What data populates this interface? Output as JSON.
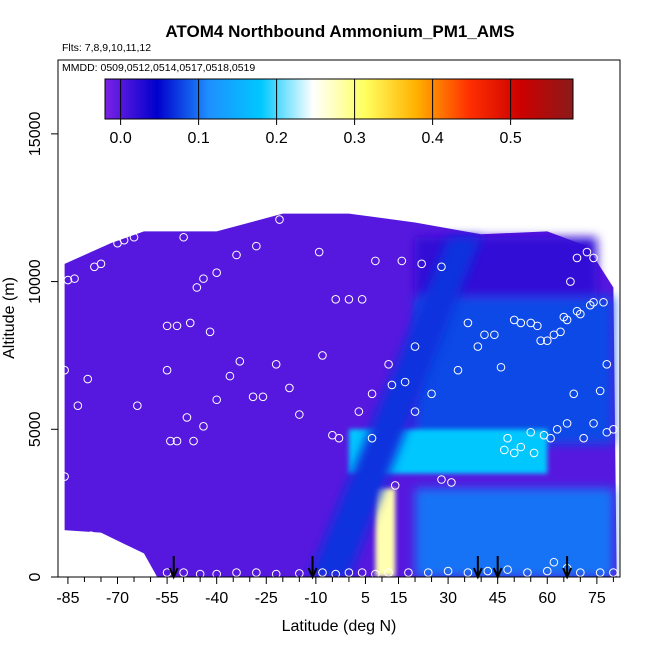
{
  "chart_data": {
    "type": "heatmap",
    "title": "ATOM4 Northbound Ammonium_PM1_AMS",
    "subtitle_flights": "Flts: 7,8,9,10,11,12",
    "subtitle_dates": "MMDD: 0509,0512,0514,0517,0518,0519",
    "xlabel": "Latitude (deg N)",
    "ylabel": "Altitude (m)",
    "xlim": [
      -88,
      82
    ],
    "ylim": [
      0,
      17500
    ],
    "x_tick_labels": [
      "-85",
      "-70",
      "-55",
      "-40",
      "-25",
      "-10",
      "5",
      "15",
      "30",
      "45",
      "60",
      "75"
    ],
    "x_tick_values": [
      -85,
      -70,
      -55,
      -40,
      -25,
      -10,
      5,
      15,
      30,
      45,
      60,
      75
    ],
    "y_tick_labels": [
      "0",
      "5000",
      "10000",
      "15000"
    ],
    "y_tick_values": [
      0,
      5000,
      10000,
      15000
    ],
    "colorbar": {
      "range": [
        -0.02,
        0.58
      ],
      "tick_labels": [
        "0.0",
        "0.1",
        "0.2",
        "0.3",
        "0.4",
        "0.5"
      ],
      "tick_values": [
        0.0,
        0.1,
        0.2,
        0.3,
        0.4,
        0.5
      ],
      "colors": [
        "#7b22e6",
        "#0000cc",
        "#1e90ff",
        "#00c8ff",
        "#ffffff",
        "#ffff60",
        "#ffb000",
        "#ff3000",
        "#cc0000",
        "#8b1a1a"
      ]
    },
    "region_value_estimates": [
      {
        "region": "southern hemisphere all altitudes",
        "lat": [
          -86,
          -15
        ],
        "alt": [
          0,
          11500
        ],
        "value": 0.0
      },
      {
        "region": "upper troposphere north",
        "lat": [
          20,
          75
        ],
        "alt": [
          9500,
          11500
        ],
        "value": 0.02
      },
      {
        "region": "northern mid troposphere",
        "lat": [
          20,
          80
        ],
        "alt": [
          4500,
          9500
        ],
        "value": 0.08
      },
      {
        "region": "northern lower troposphere band",
        "lat": [
          0,
          60
        ],
        "alt": [
          3500,
          5000
        ],
        "value": 0.18
      },
      {
        "region": "tropical boundary layer plume",
        "lat": [
          8,
          14
        ],
        "alt": [
          0,
          3000
        ],
        "value": 0.28
      },
      {
        "region": "northern boundary layer",
        "lat": [
          20,
          80
        ],
        "alt": [
          0,
          3000
        ],
        "value": 0.1
      }
    ],
    "profile_markers_lat": [
      -53,
      -11,
      39,
      45,
      66
    ],
    "measurement_points": [
      [
        -85,
        10050
      ],
      [
        -83,
        10100
      ],
      [
        -77,
        10500
      ],
      [
        -75,
        10600
      ],
      [
        -70,
        11300
      ],
      [
        -68,
        11400
      ],
      [
        -65,
        11500
      ],
      [
        -50,
        11500
      ],
      [
        -34,
        10900
      ],
      [
        -28,
        11200
      ],
      [
        -21,
        12100
      ],
      [
        -46,
        9800
      ],
      [
        -44,
        10100
      ],
      [
        -40,
        10300
      ],
      [
        -55,
        8500
      ],
      [
        -52,
        8500
      ],
      [
        -48,
        8600
      ],
      [
        -42,
        8300
      ],
      [
        -79,
        6700
      ],
      [
        -86,
        7000
      ],
      [
        -82,
        5800
      ],
      [
        -64,
        5800
      ],
      [
        -55,
        7000
      ],
      [
        -54,
        4600
      ],
      [
        -52,
        4600
      ],
      [
        -49,
        5400
      ],
      [
        -47,
        4600
      ],
      [
        -44,
        5100
      ],
      [
        -40,
        6000
      ],
      [
        -36,
        6800
      ],
      [
        -33,
        7300
      ],
      [
        -29,
        6100
      ],
      [
        -26,
        6100
      ],
      [
        -22,
        7200
      ],
      [
        -18,
        6400
      ],
      [
        -15,
        5500
      ],
      [
        -9,
        11000
      ],
      [
        -4,
        9400
      ],
      [
        0,
        9400
      ],
      [
        4,
        9400
      ],
      [
        8,
        10700
      ],
      [
        16,
        10700
      ],
      [
        22,
        10600
      ],
      [
        28,
        10500
      ],
      [
        -8,
        7500
      ],
      [
        -5,
        4800
      ],
      [
        -3,
        4700
      ],
      [
        3,
        5600
      ],
      [
        7,
        6200
      ],
      [
        7,
        4700
      ],
      [
        12,
        7200
      ],
      [
        13,
        6500
      ],
      [
        17,
        6600
      ],
      [
        20,
        5600
      ],
      [
        20,
        7800
      ],
      [
        25,
        6200
      ],
      [
        33,
        7000
      ],
      [
        36,
        8600
      ],
      [
        39,
        7800
      ],
      [
        41,
        8200
      ],
      [
        44,
        8200
      ],
      [
        46,
        7100
      ],
      [
        47,
        4300
      ],
      [
        48,
        4700
      ],
      [
        50,
        8700
      ],
      [
        52,
        8600
      ],
      [
        55,
        8600
      ],
      [
        57,
        8500
      ],
      [
        58,
        8000
      ],
      [
        60,
        8000
      ],
      [
        62,
        8200
      ],
      [
        64,
        8300
      ],
      [
        65,
        8800
      ],
      [
        66,
        8700
      ],
      [
        69,
        9000
      ],
      [
        70,
        8900
      ],
      [
        73,
        9200
      ],
      [
        74,
        9300
      ],
      [
        77,
        9300
      ],
      [
        78,
        7200
      ],
      [
        80,
        5000
      ],
      [
        50,
        4200
      ],
      [
        52,
        4400
      ],
      [
        55,
        4900
      ],
      [
        56,
        4200
      ],
      [
        59,
        4800
      ],
      [
        61,
        4700
      ],
      [
        63,
        5000
      ],
      [
        66,
        5200
      ],
      [
        68,
        6200
      ],
      [
        71,
        4700
      ],
      [
        74,
        5200
      ],
      [
        76,
        6300
      ],
      [
        78,
        4900
      ],
      [
        67,
        10000
      ],
      [
        69,
        10800
      ],
      [
        72,
        11000
      ],
      [
        74,
        10800
      ],
      [
        -86,
        3400
      ],
      [
        -78,
        1400
      ],
      [
        14,
        3100
      ],
      [
        31,
        3200
      ],
      [
        28,
        3300
      ],
      [
        -82,
        150
      ],
      [
        -79,
        100
      ],
      [
        -75,
        80
      ],
      [
        -68,
        150
      ],
      [
        -60,
        100
      ],
      [
        -55,
        150
      ],
      [
        -50,
        150
      ],
      [
        -45,
        100
      ],
      [
        -40,
        100
      ],
      [
        -34,
        150
      ],
      [
        -28,
        150
      ],
      [
        -22,
        100
      ],
      [
        -15,
        120
      ],
      [
        -8,
        150
      ],
      [
        -4,
        100
      ],
      [
        0,
        150
      ],
      [
        4,
        150
      ],
      [
        8,
        100
      ],
      [
        12,
        150
      ],
      [
        18,
        150
      ],
      [
        24,
        150
      ],
      [
        30,
        200
      ],
      [
        36,
        150
      ],
      [
        42,
        200
      ],
      [
        48,
        250
      ],
      [
        54,
        150
      ],
      [
        60,
        200
      ],
      [
        62,
        500
      ],
      [
        66,
        300
      ],
      [
        70,
        150
      ],
      [
        76,
        150
      ],
      [
        80,
        150
      ]
    ]
  }
}
